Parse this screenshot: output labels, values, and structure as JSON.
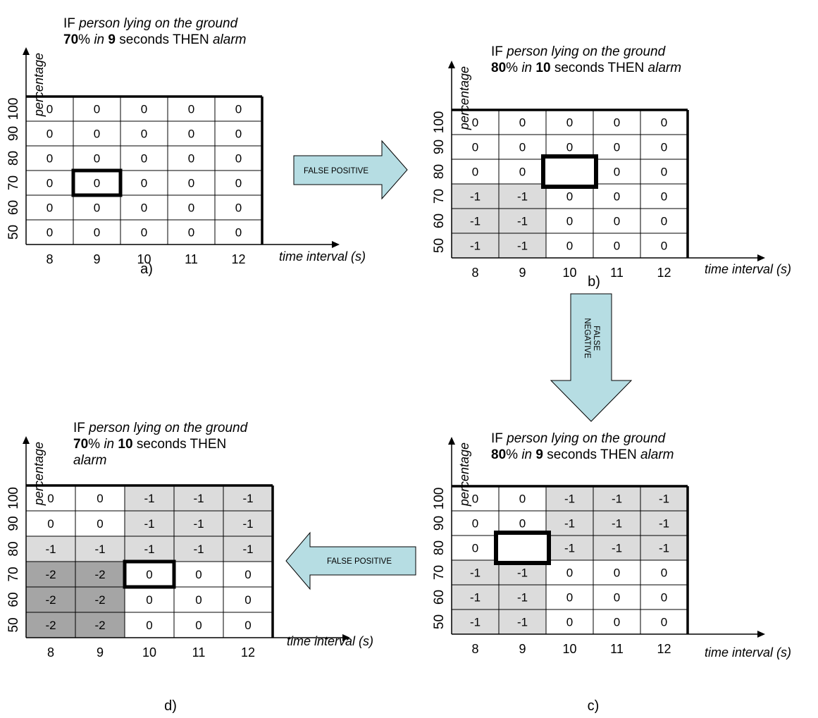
{
  "figure": {
    "y_axis_label": "percentage",
    "x_axis_label": "time interval (s)",
    "row_labels": [
      "100",
      "90",
      "80",
      "70",
      "60",
      "50"
    ],
    "col_labels": [
      "8",
      "9",
      "10",
      "11",
      "12"
    ],
    "panels": [
      {
        "id": "a",
        "caption": "a)",
        "rule": {
          "prefix": "IF ",
          "condition": "person lying on the ground",
          "percent": "70",
          "percent_suffix": "% ",
          "in_word": "in",
          "seconds": "9",
          "then_text": " seconds THEN ",
          "action": "alarm"
        },
        "cells": [
          [
            "0",
            "0",
            "0",
            "0",
            "0"
          ],
          [
            "0",
            "0",
            "0",
            "0",
            "0"
          ],
          [
            "0",
            "0",
            "0",
            "0",
            "0"
          ],
          [
            "0",
            "0",
            "0",
            "0",
            "0"
          ],
          [
            "0",
            "0",
            "0",
            "0",
            "0"
          ],
          [
            "0",
            "0",
            "0",
            "0",
            "0"
          ]
        ],
        "highlight": {
          "row": 3,
          "col": 1
        }
      },
      {
        "id": "b",
        "caption": "b)",
        "rule": {
          "prefix": "IF ",
          "condition": "person lying on the ground",
          "percent": "80",
          "percent_suffix": "% ",
          "in_word": "in",
          "seconds": "10",
          "then_text": " seconds THEN ",
          "action": "alarm"
        },
        "cells": [
          [
            "0",
            "0",
            "0",
            "0",
            "0"
          ],
          [
            "0",
            "0",
            "0",
            "0",
            "0"
          ],
          [
            "0",
            "0",
            "",
            "0",
            "0"
          ],
          [
            "-1",
            "-1",
            "0",
            "0",
            "0"
          ],
          [
            "-1",
            "-1",
            "0",
            "0",
            "0"
          ],
          [
            "-1",
            "-1",
            "0",
            "0",
            "0"
          ]
        ],
        "highlight": {
          "row": 2,
          "col": 2
        }
      },
      {
        "id": "c",
        "caption": "c)",
        "rule": {
          "prefix": "IF ",
          "condition": "person lying on the ground",
          "percent": "80",
          "percent_suffix": "% ",
          "in_word": "in",
          "seconds": "9",
          "then_text": " seconds THEN ",
          "action": "alarm"
        },
        "cells": [
          [
            "0",
            "0",
            "-1",
            "-1",
            "-1"
          ],
          [
            "0",
            "0",
            "-1",
            "-1",
            "-1"
          ],
          [
            "0",
            "",
            "-1",
            "-1",
            "-1"
          ],
          [
            "-1",
            "-1",
            "0",
            "0",
            "0"
          ],
          [
            "-1",
            "-1",
            "0",
            "0",
            "0"
          ],
          [
            "-1",
            "-1",
            "0",
            "0",
            "0"
          ]
        ],
        "highlight": {
          "row": 2,
          "col": 1
        }
      },
      {
        "id": "d",
        "caption": "d)",
        "rule": {
          "prefix": "IF ",
          "condition": "person lying on the ground",
          "percent": "70",
          "percent_suffix": "% ",
          "in_word": "in",
          "seconds": "10",
          "then_text": " seconds THEN",
          "action": "alarm"
        },
        "cells": [
          [
            "0",
            "0",
            "-1",
            "-1",
            "-1"
          ],
          [
            "0",
            "0",
            "-1",
            "-1",
            "-1"
          ],
          [
            "-1",
            "-1",
            "-1",
            "-1",
            "-1"
          ],
          [
            "-2",
            "-2",
            "0",
            "0",
            "0"
          ],
          [
            "-2",
            "-2",
            "0",
            "0",
            "0"
          ],
          [
            "-2",
            "-2",
            "0",
            "0",
            "0"
          ]
        ],
        "highlight": {
          "row": 3,
          "col": 2
        }
      }
    ],
    "transitions": [
      {
        "id": "a-to-b",
        "label": "FALSE POSITIVE",
        "direction": "right"
      },
      {
        "id": "b-to-c",
        "label_lines": [
          "FALSE",
          "NEGATIVE"
        ],
        "direction": "down"
      },
      {
        "id": "c-to-d",
        "label": "FALSE POSITIVE",
        "direction": "left"
      }
    ],
    "colors": {
      "cell_zero": "#ffffff",
      "cell_minus_one": "#dcdcdc",
      "cell_minus_two": "#a5a5a5",
      "arrow_fill": "#b6dde3",
      "line": "#000000"
    }
  }
}
